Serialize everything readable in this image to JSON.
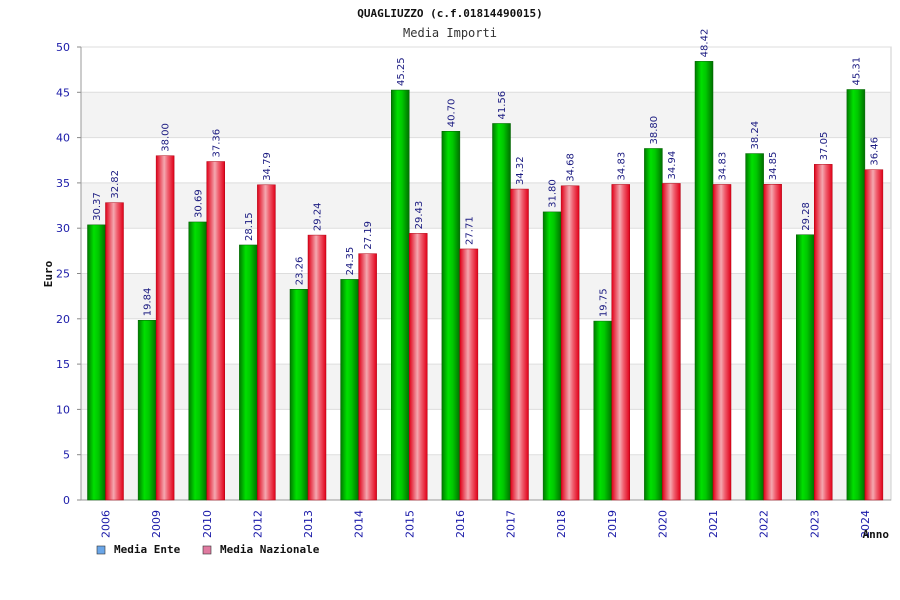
{
  "chart_data": {
    "type": "bar",
    "title": "QUAGLIUZZO (c.f.01814490015)",
    "subtitle": "Media Importi",
    "ylabel": "Euro",
    "xlabel": "Anno",
    "ylim": [
      0,
      50
    ],
    "yticks": [
      0,
      5,
      10,
      15,
      20,
      25,
      30,
      35,
      40,
      45,
      50
    ],
    "grid": true,
    "legend_position": "bottom-left",
    "categories": [
      "2006",
      "2009",
      "2010",
      "2012",
      "2013",
      "2014",
      "2015",
      "2016",
      "2017",
      "2018",
      "2019",
      "2020",
      "2021",
      "2022",
      "2023",
      "2024"
    ],
    "series": [
      {
        "name": "Media Ente",
        "legend_color": "#6aa6e8",
        "bar_color": "#00b000",
        "values": [
          30.37,
          19.84,
          30.69,
          28.15,
          23.26,
          24.35,
          45.25,
          40.7,
          41.56,
          31.8,
          19.75,
          38.8,
          48.42,
          38.24,
          29.28,
          45.31
        ],
        "labels": [
          "30.37",
          "19.84",
          "30.69",
          "28.15",
          "23.26",
          "24.35",
          "45.25",
          "40.70",
          "41.56",
          "31.80",
          "19.75",
          "38.80",
          "48.42",
          "38.24",
          "29.28",
          "45.31"
        ]
      },
      {
        "name": "Media Nazionale",
        "legend_color": "#e07aa0",
        "bar_color": "#e81020",
        "values": [
          32.82,
          38.0,
          37.36,
          34.79,
          29.24,
          27.19,
          29.43,
          27.71,
          34.32,
          34.68,
          34.83,
          34.94,
          34.83,
          34.85,
          37.05,
          36.46
        ],
        "labels": [
          "32.82",
          "38.00",
          "37.36",
          "34.79",
          "29.24",
          "27.19",
          "29.43",
          "27.71",
          "34.32",
          "34.68",
          "34.83",
          "34.94",
          "34.83",
          "34.85",
          "37.05",
          "36.46"
        ]
      }
    ]
  }
}
